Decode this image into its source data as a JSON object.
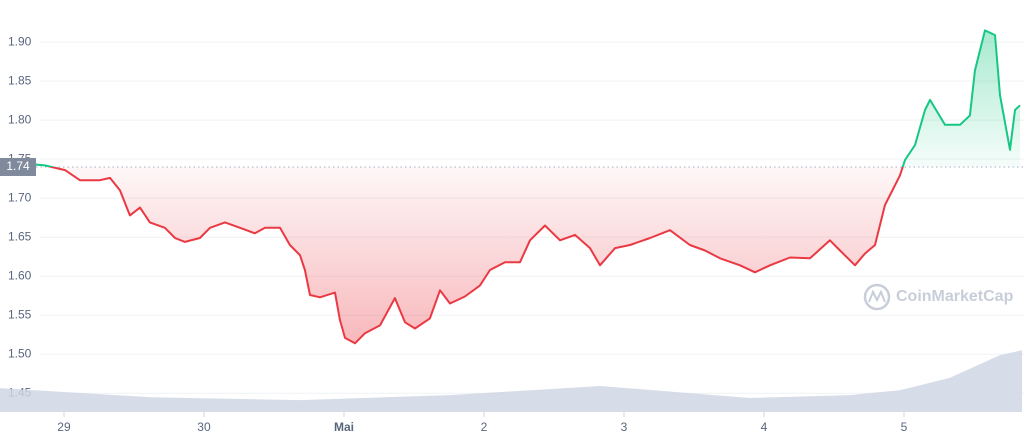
{
  "chart_data": {
    "type": "line",
    "baseline": 1.74,
    "watermark": "CoinMarketCap",
    "above_color": "#16c784",
    "below_color": "#ea3943",
    "series": [
      {
        "x": [
          -0.457,
          -0.314,
          -0.136,
          0.007,
          0.114,
          0.257,
          0.329,
          0.4,
          0.471,
          0.543,
          0.614,
          0.721,
          0.793,
          0.864,
          0.971,
          1.043,
          1.15,
          1.257,
          1.364,
          1.436,
          1.543,
          1.614,
          1.686,
          1.721,
          1.757,
          1.829,
          1.936,
          1.971,
          2.007,
          2.079,
          2.15,
          2.257,
          2.364,
          2.436,
          2.507,
          2.614,
          2.686,
          2.757,
          2.864,
          2.971,
          3.043,
          3.15,
          3.257,
          3.329,
          3.436,
          3.543,
          3.65,
          3.757,
          3.829,
          3.936,
          4.043,
          4.186,
          4.329,
          4.471,
          4.579,
          4.686,
          4.829,
          4.936,
          5.043,
          5.186,
          5.329,
          5.471,
          5.543,
          5.65,
          5.721,
          5.793,
          5.864,
          5.971,
          6.007,
          6.079,
          6.15,
          6.186,
          6.293,
          6.4,
          6.471,
          6.507,
          6.579,
          6.65,
          6.686,
          6.757,
          6.793,
          6.829
        ],
        "values": [
          1.742,
          1.745,
          1.742,
          1.736,
          1.723,
          1.723,
          1.726,
          1.71,
          1.678,
          1.688,
          1.669,
          1.662,
          1.649,
          1.644,
          1.649,
          1.662,
          1.669,
          1.662,
          1.655,
          1.662,
          1.662,
          1.64,
          1.627,
          1.608,
          1.576,
          1.573,
          1.579,
          1.544,
          1.521,
          1.514,
          1.527,
          1.537,
          1.572,
          1.541,
          1.533,
          1.546,
          1.582,
          1.565,
          1.574,
          1.588,
          1.608,
          1.618,
          1.618,
          1.646,
          1.665,
          1.646,
          1.653,
          1.636,
          1.614,
          1.636,
          1.64,
          1.649,
          1.659,
          1.64,
          1.633,
          1.623,
          1.614,
          1.605,
          1.614,
          1.624,
          1.623,
          1.646,
          1.633,
          1.614,
          1.629,
          1.64,
          1.691,
          1.729,
          1.749,
          1.768,
          1.813,
          1.826,
          1.794,
          1.794,
          1.806,
          1.864,
          1.915,
          1.909,
          1.832,
          1.762,
          1.813,
          1.819
        ]
      }
    ],
    "volume": {
      "color": "#cfd6e4",
      "axis": "y2",
      "x": [
        -0.457,
        0.614,
        1.686,
        2.757,
        3.829,
        4.9,
        5.614,
        5.971,
        6.329,
        6.686,
        6.843
      ],
      "values": [
        5.8,
        3.6,
        2.9,
        4.1,
        6.3,
        3.4,
        4.1,
        5.3,
        8.3,
        13.8,
        15.0
      ]
    },
    "xlim": [
      -0.457,
      6.843
    ],
    "xticks": [
      {
        "value": 0,
        "label": "29"
      },
      {
        "value": 1,
        "label": "30"
      },
      {
        "value": 2,
        "label": "Mai"
      },
      {
        "value": 3,
        "label": "2"
      },
      {
        "value": 4,
        "label": "3"
      },
      {
        "value": 5,
        "label": "4"
      },
      {
        "value": 6,
        "label": "5"
      }
    ],
    "ylim": [
      1.426,
      1.954
    ],
    "yticks": [
      1.45,
      {
        "value": 1.5,
        "label": "1.50"
      },
      1.55,
      {
        "value": 1.6,
        "label": "1.60"
      },
      1.65,
      {
        "value": 1.7,
        "label": "1.70"
      },
      1.75,
      {
        "value": 1.8,
        "label": "1.80"
      },
      1.85,
      {
        "value": 1.9,
        "label": "1.90"
      }
    ],
    "y2lim": [
      0,
      100
    ],
    "grid": true
  }
}
